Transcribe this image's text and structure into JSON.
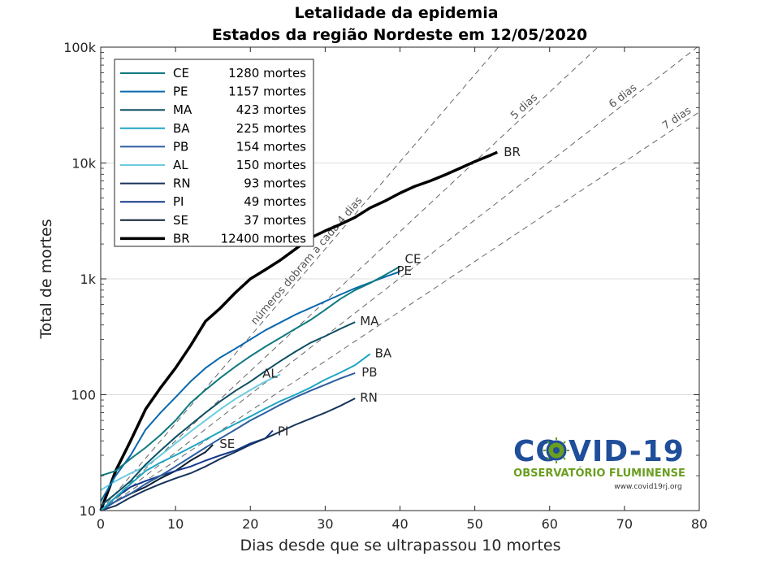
{
  "chart_data": {
    "type": "line",
    "title": "Letalidade da epidemia",
    "subtitle": "Estados da região Nordeste em 12/05/2020",
    "xlabel": "Dias desde que se ultrapassou 10 mortes",
    "ylabel": "Total de mortes",
    "xlim": [
      0,
      80
    ],
    "ylim": [
      10,
      100000
    ],
    "yscale": "log",
    "grid": "horizontal",
    "legend_position": "top-left",
    "xticks": [
      "0",
      "10",
      "20",
      "30",
      "40",
      "50",
      "60",
      "70",
      "80"
    ],
    "yticks": [
      "10",
      "100",
      "1k",
      "10k",
      "100k"
    ],
    "series": [
      {
        "name": "CE",
        "legend": "1280 mortes",
        "color": "#0e7a80",
        "width": 2,
        "end_label": "CE",
        "points": [
          [
            0,
            20
          ],
          [
            2,
            22
          ],
          [
            4,
            28
          ],
          [
            6,
            35
          ],
          [
            8,
            45
          ],
          [
            10,
            60
          ],
          [
            12,
            85
          ],
          [
            14,
            110
          ],
          [
            16,
            140
          ],
          [
            18,
            175
          ],
          [
            20,
            215
          ],
          [
            22,
            260
          ],
          [
            24,
            310
          ],
          [
            26,
            370
          ],
          [
            28,
            440
          ],
          [
            30,
            540
          ],
          [
            32,
            670
          ],
          [
            34,
            800
          ],
          [
            36,
            920
          ],
          [
            38,
            1080
          ],
          [
            40,
            1280
          ]
        ]
      },
      {
        "name": "PE",
        "legend": "1157 mortes",
        "color": "#0a68ad",
        "width": 2,
        "end_label": "PE",
        "points": [
          [
            0,
            12
          ],
          [
            2,
            20
          ],
          [
            4,
            30
          ],
          [
            6,
            50
          ],
          [
            8,
            70
          ],
          [
            10,
            95
          ],
          [
            12,
            130
          ],
          [
            14,
            170
          ],
          [
            16,
            210
          ],
          [
            18,
            250
          ],
          [
            20,
            300
          ],
          [
            22,
            360
          ],
          [
            24,
            420
          ],
          [
            26,
            490
          ],
          [
            28,
            560
          ],
          [
            30,
            640
          ],
          [
            32,
            730
          ],
          [
            34,
            830
          ],
          [
            36,
            930
          ],
          [
            38,
            1040
          ],
          [
            40,
            1157
          ]
        ]
      },
      {
        "name": "MA",
        "legend": "423 mortes",
        "color": "#0d4f63",
        "width": 2,
        "end_label": "MA",
        "points": [
          [
            0,
            11
          ],
          [
            2,
            14
          ],
          [
            4,
            18
          ],
          [
            6,
            25
          ],
          [
            8,
            33
          ],
          [
            10,
            43
          ],
          [
            12,
            55
          ],
          [
            14,
            70
          ],
          [
            16,
            88
          ],
          [
            18,
            108
          ],
          [
            20,
            130
          ],
          [
            22,
            160
          ],
          [
            24,
            195
          ],
          [
            26,
            235
          ],
          [
            28,
            280
          ],
          [
            30,
            320
          ],
          [
            32,
            370
          ],
          [
            34,
            423
          ]
        ]
      },
      {
        "name": "BA",
        "legend": "225 mortes",
        "color": "#1ea6c3",
        "width": 2,
        "end_label": "BA",
        "points": [
          [
            0,
            10
          ],
          [
            2,
            13
          ],
          [
            4,
            17
          ],
          [
            6,
            22
          ],
          [
            8,
            26
          ],
          [
            10,
            30
          ],
          [
            12,
            35
          ],
          [
            14,
            41
          ],
          [
            16,
            48
          ],
          [
            18,
            56
          ],
          [
            20,
            65
          ],
          [
            22,
            76
          ],
          [
            24,
            88
          ],
          [
            26,
            100
          ],
          [
            28,
            115
          ],
          [
            30,
            135
          ],
          [
            32,
            155
          ],
          [
            34,
            180
          ],
          [
            36,
            225
          ]
        ]
      },
      {
        "name": "PB",
        "legend": "154 mortes",
        "color": "#2e5ea0",
        "width": 2,
        "end_label": "PB",
        "points": [
          [
            0,
            10
          ],
          [
            2,
            12
          ],
          [
            4,
            14
          ],
          [
            6,
            17
          ],
          [
            8,
            20
          ],
          [
            10,
            24
          ],
          [
            12,
            29
          ],
          [
            14,
            35
          ],
          [
            16,
            42
          ],
          [
            18,
            50
          ],
          [
            20,
            60
          ],
          [
            22,
            70
          ],
          [
            24,
            82
          ],
          [
            26,
            95
          ],
          [
            28,
            108
          ],
          [
            30,
            122
          ],
          [
            32,
            138
          ],
          [
            34,
            154
          ]
        ]
      },
      {
        "name": "AL",
        "legend": "150 mortes",
        "color": "#6ccce0",
        "width": 2,
        "end_label": "AL",
        "points": [
          [
            0,
            15
          ],
          [
            2,
            18
          ],
          [
            4,
            21
          ],
          [
            6,
            24
          ],
          [
            8,
            30
          ],
          [
            10,
            38
          ],
          [
            12,
            48
          ],
          [
            14,
            60
          ],
          [
            16,
            75
          ],
          [
            18,
            92
          ],
          [
            20,
            110
          ],
          [
            22,
            130
          ],
          [
            24,
            150
          ]
        ]
      },
      {
        "name": "RN",
        "legend": "93 mortes",
        "color": "#16335c",
        "width": 2,
        "end_label": "RN",
        "points": [
          [
            0,
            10
          ],
          [
            2,
            11
          ],
          [
            4,
            13
          ],
          [
            6,
            15
          ],
          [
            8,
            17
          ],
          [
            10,
            19
          ],
          [
            12,
            21
          ],
          [
            14,
            24
          ],
          [
            16,
            28
          ],
          [
            18,
            32
          ],
          [
            20,
            37
          ],
          [
            22,
            42
          ],
          [
            24,
            48
          ],
          [
            26,
            55
          ],
          [
            28,
            62
          ],
          [
            30,
            70
          ],
          [
            32,
            80
          ],
          [
            34,
            93
          ]
        ]
      },
      {
        "name": "PI",
        "legend": "49 mortes",
        "color": "#13388a",
        "width": 2,
        "end_label": "PI",
        "points": [
          [
            0,
            10
          ],
          [
            2,
            13
          ],
          [
            4,
            16
          ],
          [
            6,
            18
          ],
          [
            8,
            20
          ],
          [
            10,
            22
          ],
          [
            12,
            24
          ],
          [
            14,
            27
          ],
          [
            16,
            30
          ],
          [
            18,
            33
          ],
          [
            20,
            38
          ],
          [
            22,
            42
          ],
          [
            23,
            49
          ]
        ]
      },
      {
        "name": "SE",
        "legend": "37 mortes",
        "color": "#0b1f33",
        "width": 2,
        "end_label": "SE",
        "points": [
          [
            0,
            10
          ],
          [
            2,
            12
          ],
          [
            4,
            14
          ],
          [
            6,
            16
          ],
          [
            8,
            19
          ],
          [
            10,
            22
          ],
          [
            12,
            27
          ],
          [
            14,
            32
          ],
          [
            15,
            37
          ]
        ]
      },
      {
        "name": "BR",
        "legend": "12400 mortes",
        "color": "#000000",
        "width": 3.5,
        "end_label": "BR",
        "points": [
          [
            0,
            10
          ],
          [
            2,
            22
          ],
          [
            4,
            40
          ],
          [
            6,
            75
          ],
          [
            8,
            115
          ],
          [
            10,
            170
          ],
          [
            12,
            265
          ],
          [
            14,
            430
          ],
          [
            16,
            560
          ],
          [
            18,
            760
          ],
          [
            20,
            1000
          ],
          [
            22,
            1200
          ],
          [
            24,
            1450
          ],
          [
            26,
            1800
          ],
          [
            28,
            2250
          ],
          [
            30,
            2600
          ],
          [
            32,
            2950
          ],
          [
            34,
            3400
          ],
          [
            36,
            4100
          ],
          [
            38,
            4700
          ],
          [
            40,
            5500
          ],
          [
            42,
            6300
          ],
          [
            44,
            7000
          ],
          [
            46,
            7900
          ],
          [
            48,
            9000
          ],
          [
            50,
            10300
          ],
          [
            52,
            11600
          ],
          [
            53,
            12400
          ]
        ]
      }
    ],
    "reference_lines": [
      {
        "label": "números dobram a cada 4 dias",
        "doubling_days": 4
      },
      {
        "label": "5 dias",
        "doubling_days": 5
      },
      {
        "label": "6 dias",
        "doubling_days": 6
      },
      {
        "label": "7 dias",
        "doubling_days": 7
      }
    ]
  },
  "logo": {
    "name": "COVID-19",
    "subtitle": "OBSERVATÓRIO FLUMINENSE",
    "url": "www.covid19rj.org",
    "color_blue": "#1f4e9a",
    "color_green": "#6a9e1f"
  }
}
